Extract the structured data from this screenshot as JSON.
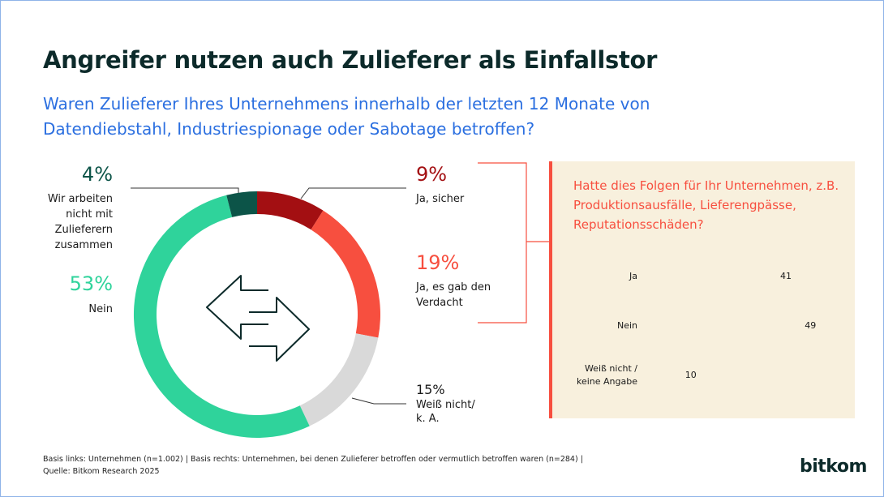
{
  "header": {
    "title": "Angreifer nutzen auch Zulieferer als Einfallstor",
    "subtitle": "Waren Zulieferer Ihres Unternehmens innerhalb der letzten 12 Monate von Datendiebstahl, Industriespionage oder Sabotage betroffen?"
  },
  "chart_data": [
    {
      "type": "pie",
      "categories": [
        "Ja, sicher",
        "Ja, es gab den Verdacht",
        "Weiß nicht/ k. A.",
        "Nein",
        "Wir arbeiten nicht mit Zulieferern zusammen"
      ],
      "values": [
        9,
        19,
        15,
        53,
        4
      ],
      "value_labels": [
        "9%",
        "19%",
        "15%",
        "53%",
        "4%"
      ],
      "colors": [
        "#a30f12",
        "#f74f3f",
        "#d9d9d9",
        "#2fd39b",
        "#0c5448"
      ]
    },
    {
      "type": "hbar",
      "title": "Hatte dies Folgen für Ihr Unternehmen, z.B. Produktionsausfälle, Lieferengpässe, Reputationsschäden?",
      "categories": [
        "Ja",
        "Nein",
        "Weiß nicht / keine Angabe"
      ],
      "values": [
        41,
        49,
        10
      ],
      "color": "#f74f3f"
    }
  ],
  "footer": {
    "note": "Basis links: Unternehmen (n=1.002) | Basis rechts: Unternehmen, bei denen Zulieferer betroffen oder vermutlich betroffen waren (n=284) |",
    "source": "Quelle: Bitkom Research 2025",
    "logo": "bitkom"
  }
}
